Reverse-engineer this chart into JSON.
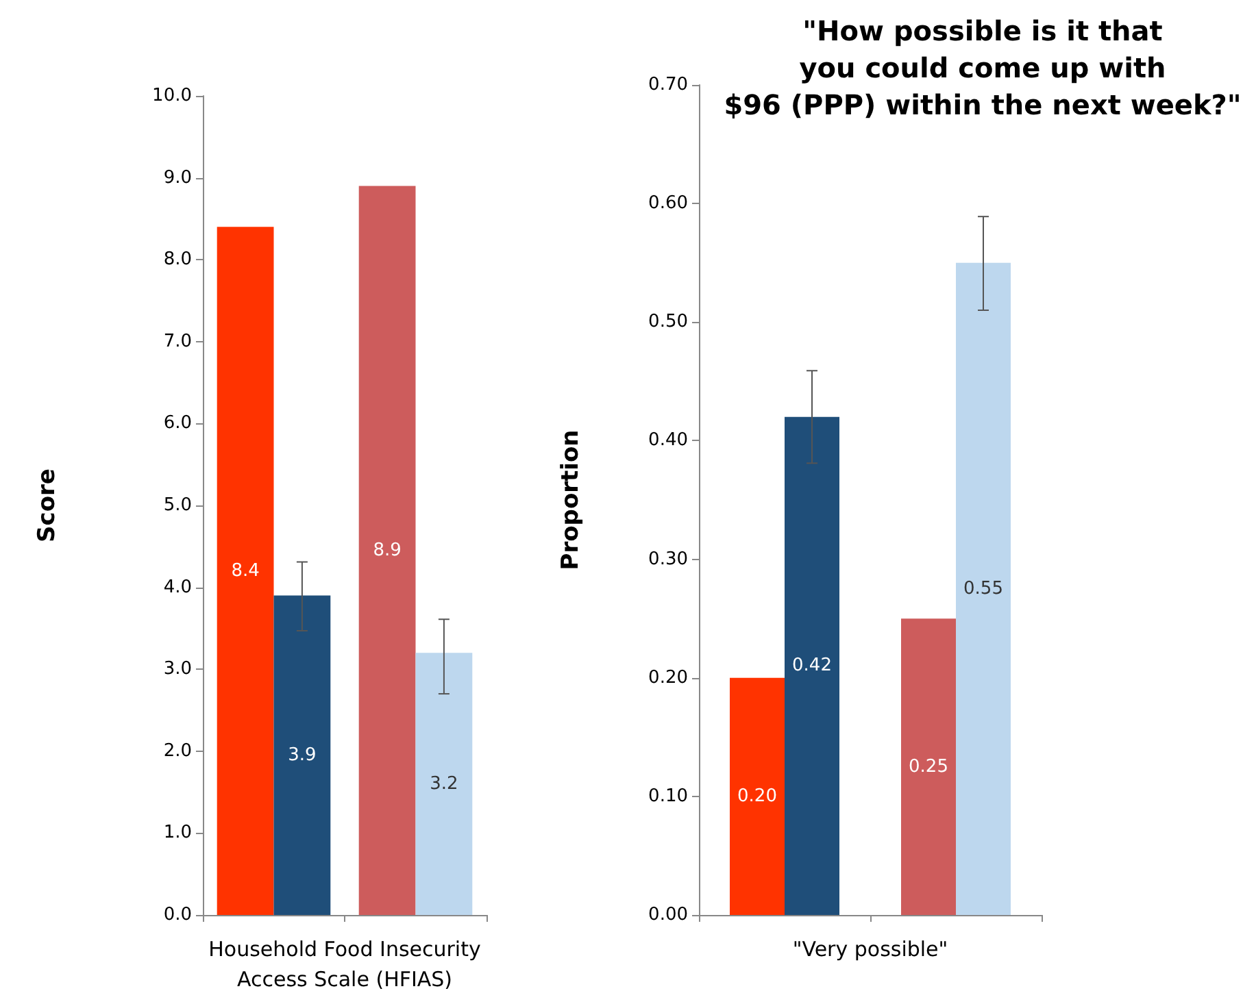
{
  "chart_data": [
    {
      "type": "bar",
      "ylabel": "Score",
      "xlabel": "Household Food Insecurity\nAccess Scale (HFIAS)",
      "categories": [
        null,
        null
      ],
      "series": [
        {
          "colors": [
            "#ff3300",
            "#cd5c5c"
          ],
          "values": [
            8.4,
            8.9
          ],
          "errors": [
            null,
            null
          ]
        },
        {
          "colors": [
            "#1f4e79",
            "#bdd7ee"
          ],
          "values": [
            3.9,
            3.2
          ],
          "errors": [
            [
              3.47,
              4.31
            ],
            [
              2.7,
              3.61
            ]
          ]
        }
      ],
      "ylim": [
        0,
        10
      ],
      "yticks": [
        {
          "value": 0,
          "label": "0.0"
        },
        {
          "value": 1,
          "label": "1.0"
        },
        {
          "value": 2,
          "label": "2.0"
        },
        {
          "value": 3,
          "label": "3.0"
        },
        {
          "value": 4,
          "label": "4.0"
        },
        {
          "value": 5,
          "label": "5.0"
        },
        {
          "value": 6,
          "label": "6.0"
        },
        {
          "value": 7,
          "label": "7.0"
        },
        {
          "value": 8,
          "label": "8.0"
        },
        {
          "value": 9,
          "label": "9.0"
        },
        {
          "value": 10,
          "label": "10.0"
        }
      ],
      "data_labels": true,
      "grid": false
    },
    {
      "type": "bar",
      "title": "\"How possible is it that\nyou could come up with\n$96 (PPP) within the next week?\"",
      "ylabel": "Proportion",
      "xlabel": "\"Very possible\"",
      "categories": [
        null,
        null
      ],
      "series": [
        {
          "colors": [
            "#ff3300",
            "#cd5c5c"
          ],
          "values": [
            0.2,
            0.25
          ],
          "value_labels": [
            "0.20",
            "0.25"
          ],
          "errors": [
            null,
            null
          ]
        },
        {
          "colors": [
            "#1f4e79",
            "#bdd7ee"
          ],
          "values": [
            0.42,
            0.55
          ],
          "value_labels": [
            "0.42",
            "0.55"
          ],
          "errors": [
            [
              0.381,
              0.459
            ],
            [
              0.51,
              0.589
            ]
          ]
        }
      ],
      "ylim": [
        0,
        0.7
      ],
      "yticks": [
        {
          "value": 0,
          "label": "0.00"
        },
        {
          "value": 0.1,
          "label": "0.10"
        },
        {
          "value": 0.2,
          "label": "0.20"
        },
        {
          "value": 0.3,
          "label": "0.30"
        },
        {
          "value": 0.4,
          "label": "0.40"
        },
        {
          "value": 0.5,
          "label": "0.50"
        },
        {
          "value": 0.6,
          "label": "0.60"
        },
        {
          "value": 0.7,
          "label": "0.70"
        }
      ],
      "grid": false
    }
  ]
}
